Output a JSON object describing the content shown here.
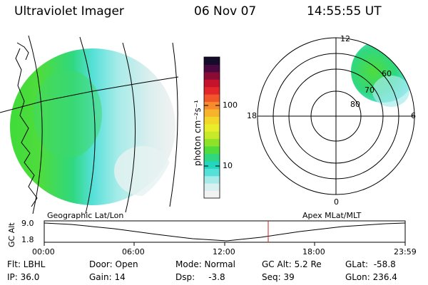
{
  "header": {
    "title": "Ultraviolet Imager",
    "date": "06 Nov 07",
    "time": "14:55:55 UT"
  },
  "colorbar": {
    "unit_label": "photon cm⁻²s⁻¹",
    "ticks": [
      "100",
      "10"
    ],
    "colors": [
      "#f2f2f2",
      "#d8f0ef",
      "#a6ebe9",
      "#55e0d8",
      "#22d6c0",
      "#2fd880",
      "#4fdc3c",
      "#8ee32a",
      "#c6e92a",
      "#e8ee2a",
      "#f3d62a",
      "#f7b42a",
      "#f78a2a",
      "#f0562a",
      "#e3262a",
      "#c4132a",
      "#8a0c34",
      "#4a0840",
      "#150b2a"
    ]
  },
  "polar": {
    "mlt_labels": {
      "top": "12",
      "left": "18",
      "right": "6",
      "bottom": "0"
    },
    "lat_labels": [
      "60",
      "70",
      "80"
    ]
  },
  "timeline": {
    "left_title": "Geographic Lat/Lon",
    "right_title": "Apex  MLat/MLT",
    "axis_label": "GC Alt",
    "y_top": "9.0",
    "y_bottom": "1.8",
    "x_ticks": [
      "00:00",
      "06:00",
      "12:00",
      "18:00",
      "23:59"
    ],
    "marker_color": "#cc2222"
  },
  "info": {
    "flt": "Flt: LBHL",
    "ip": "IP: 36.0",
    "door": "Door: Open",
    "gain": "Gain: 14",
    "mode": "Mode: Normal",
    "dsp": "Dsp:     -3.8",
    "gc_alt": "GC Alt: 5.2 Re",
    "seq": "Seq: 39",
    "glat": "GLat:  -58.8",
    "glon": "GLon: 236.4"
  }
}
